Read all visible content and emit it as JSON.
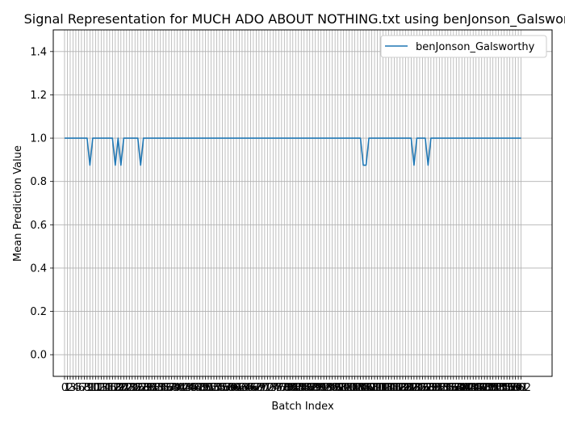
{
  "chart_data": {
    "type": "line",
    "title": "Signal Representation for MUCH ADO ABOUT NOTHING.txt using benJonson_Galsworthy",
    "xlabel": "Batch Index",
    "ylabel": "Mean Prediction Value",
    "xlim": [
      -4,
      173
    ],
    "ylim": [
      -0.1,
      1.5
    ],
    "yticks": [
      "0.0",
      "0.2",
      "0.4",
      "0.6",
      "0.8",
      "1.0",
      "1.2",
      "1.4"
    ],
    "x_tick_count": 163,
    "grid": true,
    "legend_position": "top-right",
    "line_color": "#1f77b4",
    "series": [
      {
        "name": "benJonson_Galsworthy",
        "x_start": 0,
        "x_end": 162,
        "base_value": 1.0,
        "dips": [
          {
            "x": 9,
            "y": 0.875
          },
          {
            "x": 18,
            "y": 0.875
          },
          {
            "x": 20,
            "y": 0.875
          },
          {
            "x": 27,
            "y": 0.875
          },
          {
            "x": 106,
            "y": 0.875
          },
          {
            "x": 107,
            "y": 0.875
          },
          {
            "x": 124,
            "y": 0.875
          },
          {
            "x": 129,
            "y": 0.875
          }
        ]
      }
    ]
  }
}
